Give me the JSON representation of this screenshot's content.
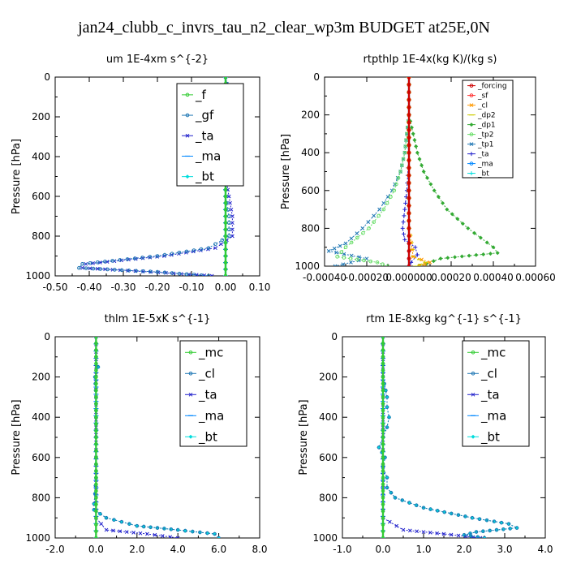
{
  "title": "jan24_clubb_c_invrs_tau_n2_clear_wp3m  BUDGET at25E,0N",
  "chart_data": [
    {
      "type": "line",
      "panel": "top-left",
      "title": "um   1E-4xm s^{-2}",
      "ylabel": "Pressure [hPa]",
      "xlim": [
        -0.5,
        0.1
      ],
      "ylim": [
        1000,
        0
      ],
      "xticks": [
        "-0.50",
        "-0.40",
        "-0.30",
        "-0.20",
        "-0.10",
        "0.00",
        "0.10"
      ],
      "yticks": [
        "0",
        "200",
        "400",
        "600",
        "800",
        "1000"
      ],
      "grid": false,
      "legend_position": "top-right",
      "series": [
        {
          "name": "_f",
          "color": "#33cc33",
          "y": [
            0,
            100,
            200,
            300,
            400,
            500,
            600,
            700,
            800,
            900,
            1000
          ],
          "x": [
            0,
            0,
            0,
            0,
            0,
            0,
            0,
            0,
            0,
            0,
            0
          ]
        },
        {
          "name": "_gf",
          "color": "#1f77b4",
          "y": [
            0,
            100,
            150,
            200,
            300,
            400,
            500,
            600,
            700,
            800,
            860,
            900,
            940,
            960,
            980,
            1000
          ],
          "x": [
            0,
            0.01,
            -0.01,
            0,
            0,
            0,
            0,
            0,
            0.01,
            0.01,
            -0.05,
            -0.2,
            -0.42,
            -0.43,
            -0.2,
            -0.05
          ]
        },
        {
          "name": "_ta",
          "color": "#2222cc",
          "y": [
            0,
            100,
            150,
            200,
            300,
            400,
            500,
            600,
            700,
            800,
            860,
            900,
            940,
            960,
            980,
            1000
          ],
          "x": [
            0,
            0.01,
            0.01,
            0,
            0,
            0,
            0,
            0.01,
            0.02,
            0.02,
            -0.03,
            -0.18,
            -0.41,
            -0.42,
            -0.22,
            -0.04
          ]
        },
        {
          "name": "_ma",
          "color": "#0088ff",
          "y": [
            0,
            100,
            200,
            300,
            400,
            500,
            600,
            700,
            800,
            900,
            1000
          ],
          "x": [
            0,
            0,
            0,
            0,
            0,
            0,
            0,
            0,
            0,
            0,
            0
          ]
        },
        {
          "name": "_bt",
          "color": "#00dddd",
          "y": [
            0,
            100,
            200,
            300,
            400,
            500,
            600,
            700,
            800,
            900,
            1000
          ],
          "x": [
            0,
            0,
            0,
            0,
            0,
            0,
            0,
            0,
            0,
            0,
            0
          ]
        }
      ]
    },
    {
      "type": "line",
      "panel": "top-right",
      "title": "rtpthlp   1E-4x(kg K)/(kg s)",
      "ylabel": "Pressure [hPa]",
      "xlim": [
        -0.0004,
        0.0006
      ],
      "ylim": [
        1000,
        0
      ],
      "xticks": [
        "-0.00040",
        "-0.00020",
        "0.000000",
        "0.00020",
        "0.00040",
        "0.00060"
      ],
      "yticks": [
        "0",
        "200",
        "400",
        "600",
        "800",
        "1000"
      ],
      "grid": false,
      "legend_position": "top-right",
      "series": [
        {
          "name": "_forcing",
          "color": "#cc0000",
          "y": [
            0,
            200,
            400,
            600,
            800,
            1000
          ],
          "x": [
            0,
            0,
            0,
            0,
            0,
            0
          ]
        },
        {
          "name": "_sf",
          "color": "#ff3333",
          "y": [
            0,
            200,
            400,
            600,
            800,
            1000
          ],
          "x": [
            0,
            0,
            0,
            0,
            0,
            0
          ]
        },
        {
          "name": "_cl",
          "color": "#ff9900",
          "y": [
            0,
            200,
            400,
            600,
            800,
            950,
            980,
            1000
          ],
          "x": [
            0,
            0,
            0,
            0,
            0,
            2e-05,
            0.0001,
            5e-05
          ]
        },
        {
          "name": "_dp2",
          "color": "#cccc00",
          "y": [
            0,
            200,
            400,
            600,
            800,
            950,
            980,
            1000
          ],
          "x": [
            0,
            0,
            0,
            0,
            0,
            2e-05,
            8e-05,
            3e-05
          ]
        },
        {
          "name": "_dp1",
          "color": "#33aa33",
          "y": [
            0,
            200,
            300,
            400,
            500,
            600,
            700,
            800,
            900,
            930,
            960,
            1000
          ],
          "x": [
            0,
            0,
            2e-05,
            4e-05,
            7e-05,
            0.00012,
            0.00018,
            0.00028,
            0.0004,
            0.00042,
            0.00015,
            5e-05
          ]
        },
        {
          "name": "_tp2",
          "color": "#66dd66",
          "y": [
            0,
            200,
            300,
            400,
            500,
            600,
            700,
            800,
            900,
            950,
            980,
            1000
          ],
          "x": [
            0,
            0,
            -1e-05,
            -2e-05,
            -4e-05,
            -7e-05,
            -0.00012,
            -0.00019,
            -0.0003,
            -0.00034,
            -0.00015,
            -0.0001
          ]
        },
        {
          "name": "_tp1",
          "color": "#1f77b4",
          "y": [
            0,
            200,
            300,
            400,
            500,
            600,
            700,
            800,
            880,
            920,
            960,
            1000
          ],
          "x": [
            0,
            0,
            -1e-05,
            -2e-05,
            -4e-05,
            -8e-05,
            -0.00014,
            -0.00022,
            -0.0003,
            -0.00038,
            -0.0002,
            -0.00035
          ]
        },
        {
          "name": "_ta",
          "color": "#2222cc",
          "y": [
            0,
            200,
            400,
            600,
            700,
            800,
            860,
            900,
            940,
            980,
            1000
          ],
          "x": [
            0,
            0,
            0,
            -1e-05,
            -2e-05,
            -3e-05,
            -2e-05,
            3e-05,
            4e-05,
            1e-05,
            0
          ]
        },
        {
          "name": "_ma",
          "color": "#0088ff",
          "y": [
            0,
            200,
            400,
            600,
            800,
            1000
          ],
          "x": [
            0,
            0,
            0,
            0,
            0,
            0
          ]
        },
        {
          "name": "_bt",
          "color": "#00dddd",
          "y": [
            0,
            200,
            400,
            600,
            800,
            1000
          ],
          "x": [
            0,
            0,
            0,
            0,
            0,
            0
          ]
        }
      ]
    },
    {
      "type": "line",
      "panel": "bottom-left",
      "title": "thlm   1E-5xK s^{-1}",
      "ylabel": "Pressure [hPa]",
      "xlim": [
        -2.0,
        8.0
      ],
      "ylim": [
        1000,
        0
      ],
      "xticks": [
        "-2.0",
        "0.0",
        "2.0",
        "4.0",
        "6.0",
        "8.0"
      ],
      "yticks": [
        "0",
        "200",
        "400",
        "600",
        "800",
        "1000"
      ],
      "grid": false,
      "legend_position": "top-right",
      "series": [
        {
          "name": "_mc",
          "color": "#33cc33",
          "y": [
            0,
            100,
            200,
            300,
            400,
            500,
            600,
            700,
            800,
            900,
            1000
          ],
          "x": [
            0,
            0,
            0,
            0,
            0,
            0,
            0,
            0,
            0,
            0,
            0
          ]
        },
        {
          "name": "_cl",
          "color": "#1f77b4",
          "y": [
            0,
            100,
            150,
            200,
            300,
            400,
            500,
            600,
            700,
            780,
            830,
            860,
            900,
            940,
            960,
            980,
            1000
          ],
          "x": [
            0,
            0,
            0.1,
            -0.05,
            0,
            0,
            0,
            0,
            0,
            -0.05,
            -0.1,
            -0.1,
            0.5,
            2.0,
            4.0,
            5.8,
            6.0
          ]
        },
        {
          "name": "_ta",
          "color": "#2222cc",
          "y": [
            0,
            300,
            600,
            900,
            960,
            980,
            1000
          ],
          "x": [
            0,
            0,
            0,
            0,
            0.5,
            2.5,
            4.0
          ]
        },
        {
          "name": "_ma",
          "color": "#0088ff",
          "y": [
            0,
            500,
            1000
          ],
          "x": [
            0,
            0,
            0
          ]
        },
        {
          "name": "_bt",
          "color": "#00dddd",
          "y": [
            0,
            100,
            150,
            200,
            300,
            400,
            500,
            600,
            700,
            780,
            830,
            860,
            900,
            940,
            960,
            980,
            1000
          ],
          "x": [
            0,
            0,
            0.1,
            -0.05,
            0,
            0,
            0,
            0,
            0,
            -0.05,
            -0.1,
            -0.1,
            0.5,
            2.0,
            4.0,
            5.8,
            6.0
          ]
        }
      ]
    },
    {
      "type": "line",
      "panel": "bottom-right",
      "title": "rtm   1E-8xkg kg^{-1} s^{-1}",
      "ylabel": "Pressure [hPa]",
      "xlim": [
        -1.0,
        4.0
      ],
      "ylim": [
        1000,
        0
      ],
      "xticks": [
        "-1.0",
        "0.0",
        "1.0",
        "2.0",
        "3.0",
        "4.0"
      ],
      "yticks": [
        "0",
        "200",
        "400",
        "600",
        "800",
        "1000"
      ],
      "grid": false,
      "legend_position": "top-right",
      "series": [
        {
          "name": "_mc",
          "color": "#33cc33",
          "y": [
            0,
            100,
            200,
            300,
            400,
            500,
            600,
            700,
            800,
            900,
            1000
          ],
          "x": [
            0,
            0,
            0,
            0,
            0,
            0,
            0,
            0,
            0,
            0,
            0
          ]
        },
        {
          "name": "_cl",
          "color": "#1f77b4",
          "y": [
            0,
            100,
            200,
            300,
            350,
            400,
            450,
            500,
            550,
            600,
            650,
            700,
            750,
            800,
            850,
            900,
            930,
            950,
            970,
            985,
            1000
          ],
          "x": [
            0,
            0,
            0,
            0.1,
            0.1,
            0.15,
            0.1,
            0,
            -0.1,
            0.05,
            0,
            0.1,
            0.1,
            0.3,
            1.0,
            2.2,
            3.1,
            3.3,
            2.3,
            2.0,
            2.5
          ]
        },
        {
          "name": "_ta",
          "color": "#2222cc",
          "y": [
            0,
            300,
            600,
            900,
            960,
            980,
            1000
          ],
          "x": [
            0,
            0,
            0,
            0,
            0.5,
            1.5,
            2.4
          ]
        },
        {
          "name": "_ma",
          "color": "#0088ff",
          "y": [
            0,
            500,
            1000
          ],
          "x": [
            0,
            0,
            0
          ]
        },
        {
          "name": "_bt",
          "color": "#00dddd",
          "y": [
            0,
            100,
            200,
            300,
            350,
            400,
            450,
            500,
            550,
            600,
            650,
            700,
            750,
            800,
            850,
            900,
            930,
            950,
            970,
            985,
            1000
          ],
          "x": [
            0,
            0,
            0,
            0.1,
            0.1,
            0.15,
            0.1,
            0,
            -0.1,
            0.05,
            0,
            0.1,
            0.1,
            0.3,
            1.0,
            2.2,
            3.1,
            3.3,
            2.3,
            2.0,
            2.5
          ]
        }
      ]
    }
  ]
}
